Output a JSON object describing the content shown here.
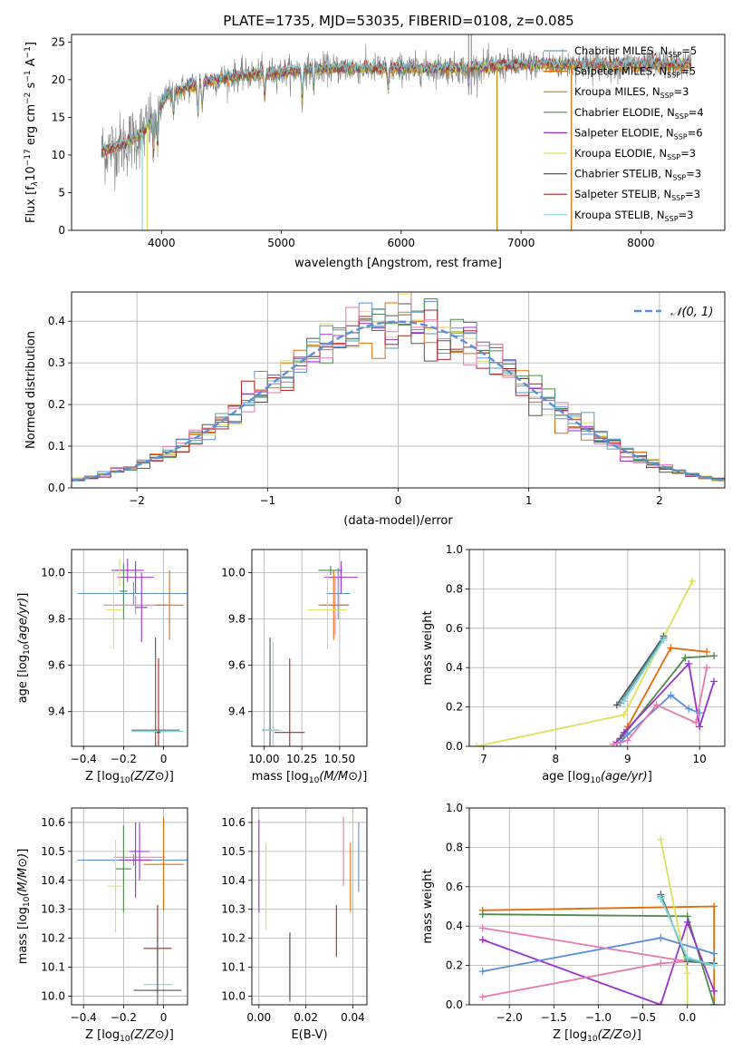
{
  "figure": {
    "title": "PLATE=1735, MJD=53035, FIBERID=0108, z=0.085"
  },
  "models": [
    {
      "label": "Chabrier MILES, N",
      "sub": "SSP",
      "tail": "=5",
      "color": "#5f9ea0"
    },
    {
      "label": "Salpeter MILES, N",
      "sub": "SSP",
      "tail": "=5",
      "color": "#e36c0a"
    },
    {
      "label": "Kroupa MILES, N",
      "sub": "SSP",
      "tail": "=3",
      "color": "#b8860b"
    },
    {
      "label": "Chabrier ELODIE, N",
      "sub": "SSP",
      "tail": "=4",
      "color": "#4e8a4e"
    },
    {
      "label": "Salpeter ELODIE, N",
      "sub": "SSP",
      "tail": "=6",
      "color": "#9932cc"
    },
    {
      "label": "Kroupa ELODIE, N",
      "sub": "SSP",
      "tail": "=3",
      "color": "#dde05b"
    },
    {
      "label": "Chabrier STELIB, N",
      "sub": "SSP",
      "tail": "=3",
      "color": "#555555"
    },
    {
      "label": "Salpeter STELIB, N",
      "sub": "SSP",
      "tail": "=3",
      "color": "#b22222"
    },
    {
      "label": "Kroupa STELIB, N",
      "sub": "SSP",
      "tail": "=3",
      "color": "#7fd8e0"
    }
  ],
  "chart_data": [
    {
      "id": "spectrum",
      "type": "line",
      "xlabel": "wavelength [Angstrom, rest frame]",
      "ylabel_parts": [
        "Flux [f",
        "λ",
        "10",
        "−17",
        " erg cm",
        "−2",
        " s",
        "−1",
        " A",
        "−1",
        "]"
      ],
      "xlim": [
        3250,
        8700
      ],
      "ylim": [
        0,
        26
      ],
      "xticks": [
        4000,
        5000,
        6000,
        7000,
        8000
      ],
      "yticks": [
        0,
        5,
        10,
        15,
        20,
        25
      ],
      "grid": false,
      "legend": "right",
      "continuum_knots": {
        "x": [
          3500,
          3700,
          3850,
          3950,
          4050,
          4300,
          4600,
          5000,
          5300,
          5700,
          6000,
          6500,
          7000,
          7500,
          8000,
          8400
        ],
        "y": [
          10.5,
          11.5,
          13.0,
          15.5,
          18.0,
          19.5,
          20.5,
          21.0,
          21.5,
          21.5,
          21.5,
          21.5,
          22.0,
          22.0,
          22.0,
          22.0
        ]
      },
      "absorption_lines": [
        {
          "x": 3934,
          "depth": 5
        },
        {
          "x": 3968,
          "depth": 5
        },
        {
          "x": 4101,
          "depth": 3
        },
        {
          "x": 4304,
          "depth": 4
        },
        {
          "x": 4340,
          "depth": 3
        },
        {
          "x": 4861,
          "depth": 3
        },
        {
          "x": 5175,
          "depth": 4
        },
        {
          "x": 5270,
          "depth": 2
        },
        {
          "x": 5892,
          "depth": 3
        },
        {
          "x": 6563,
          "depth": 2
        }
      ],
      "emission_spikes": [
        6563,
        6585
      ]
    },
    {
      "id": "residuals",
      "type": "area",
      "xlabel": "(data-model)/error",
      "ylabel": "Normed distribution",
      "xlim": [
        -2.5,
        2.5
      ],
      "ylim": [
        0,
        0.47
      ],
      "xticks": [
        -2,
        -1,
        0,
        1,
        2
      ],
      "yticks": [
        0.0,
        0.1,
        0.2,
        0.3,
        0.4
      ],
      "grid": true,
      "legend": "top-right",
      "gaussian_label": "𝒩(0, 1)",
      "gaussian_color": "#5b8fd8",
      "bin_width": 0.1
    },
    {
      "id": "age-vs-metallicity",
      "type": "scatter",
      "xlabel": "Z [log10(Z/Z⊙)]",
      "ylabel": "age [log10(age/yr)]",
      "xlim": [
        -0.46,
        0.12
      ],
      "ylim": [
        9.25,
        10.1
      ],
      "xticks": [
        -0.4,
        -0.2,
        0.0
      ],
      "yticks": [
        9.4,
        9.6,
        9.8,
        10.0
      ],
      "grid": true,
      "points": [
        {
          "x": -0.18,
          "y": 10.01,
          "xerr": 0.08,
          "yerr": 0.05,
          "c": 4
        },
        {
          "x": -0.14,
          "y": 9.98,
          "xerr": 0.09,
          "yerr": 0.07,
          "c": 4
        },
        {
          "x": -0.22,
          "y": 10.0,
          "xerr": 0.04,
          "yerr": 0.06,
          "c": 5
        },
        {
          "x": -0.2,
          "y": 9.92,
          "xerr": 0.02,
          "yerr": 0.12,
          "c": 3
        },
        {
          "x": -0.15,
          "y": 9.91,
          "xerr": 0.28,
          "yerr": 0.05,
          "c": 10
        },
        {
          "x": -0.14,
          "y": 9.86,
          "xerr": 0.16,
          "yerr": 0.04,
          "c": 11
        },
        {
          "x": 0.03,
          "y": 9.86,
          "xerr": 0.07,
          "yerr": 0.15,
          "c": 1
        },
        {
          "x": -0.25,
          "y": 9.84,
          "xerr": 0.04,
          "yerr": 0.17,
          "c": 5
        },
        {
          "x": -0.11,
          "y": 9.85,
          "xerr": 0.03,
          "yerr": 0.15,
          "c": 4
        },
        {
          "x": -0.04,
          "y": 9.32,
          "xerr": 0.12,
          "yerr": 0.4,
          "c": 6
        },
        {
          "x": -0.03,
          "y": 9.315,
          "xerr": 0.13,
          "yerr": 0.01,
          "c": 8
        },
        {
          "x": -0.025,
          "y": 9.31,
          "xerr": 0.01,
          "yerr": 0.32,
          "c": 7
        }
      ]
    },
    {
      "id": "age-vs-mass",
      "type": "scatter",
      "xlabel": "mass [log10(M/M⊙)]",
      "xlim": [
        9.92,
        10.68
      ],
      "ylim": [
        9.25,
        10.1
      ],
      "xticks": [
        10.0,
        10.25,
        10.5
      ],
      "xticklabels": [
        "10.00",
        "10.25",
        "10.50"
      ],
      "yticks": [
        9.4,
        9.6,
        9.8,
        10.0
      ],
      "grid": true,
      "points": [
        {
          "x": 10.44,
          "y": 10.01,
          "xerr": 0.08,
          "yerr": 0.02,
          "c": 3
        },
        {
          "x": 10.51,
          "y": 9.98,
          "xerr": 0.11,
          "yerr": 0.07,
          "c": 4
        },
        {
          "x": 10.49,
          "y": 9.91,
          "xerr": 0.08,
          "yerr": 0.11,
          "c": 10
        },
        {
          "x": 10.47,
          "y": 9.86,
          "xerr": 0.09,
          "yerr": 0.13,
          "c": 11
        },
        {
          "x": 10.46,
          "y": 9.86,
          "xerr": 0.1,
          "yerr": 0.15,
          "c": 1
        },
        {
          "x": 10.42,
          "y": 9.84,
          "xerr": 0.13,
          "yerr": 0.17,
          "c": 5
        },
        {
          "x": 10.04,
          "y": 9.32,
          "xerr": 0.05,
          "yerr": 0.4,
          "c": 6
        },
        {
          "x": 10.06,
          "y": 9.32,
          "xerr": 0.06,
          "yerr": 0.38,
          "c": 8
        },
        {
          "x": 10.17,
          "y": 9.31,
          "xerr": 0.1,
          "yerr": 0.32,
          "c": 7
        }
      ]
    },
    {
      "id": "weight-vs-age",
      "type": "line",
      "xlabel": "age [log10(age/yr)]",
      "ylabel": "mass weight",
      "xlim": [
        6.8,
        10.35
      ],
      "ylim": [
        0,
        1.0
      ],
      "xticks": [
        7,
        8,
        9,
        10
      ],
      "yticks": [
        0.0,
        0.2,
        0.4,
        0.6,
        0.8,
        1.0
      ],
      "grid": true,
      "series": [
        {
          "c": 5,
          "x": [
            6.9,
            8.95,
            9.9
          ],
          "y": [
            0.0,
            0.16,
            0.84
          ]
        },
        {
          "c": 1,
          "x": [
            8.9,
            9.0,
            9.6,
            10.1
          ],
          "y": [
            0.04,
            0.1,
            0.5,
            0.48
          ]
        },
        {
          "c": 3,
          "x": [
            8.9,
            8.95,
            9.8,
            10.2
          ],
          "y": [
            0.04,
            0.06,
            0.45,
            0.46
          ]
        },
        {
          "c": 4,
          "x": [
            8.85,
            8.95,
            9.85,
            10.0,
            10.2
          ],
          "y": [
            0.02,
            0.07,
            0.42,
            0.1,
            0.33
          ]
        },
        {
          "c": 10,
          "x": [
            8.9,
            9.0,
            9.6,
            9.85,
            10.0
          ],
          "y": [
            0.02,
            0.06,
            0.26,
            0.19,
            0.17
          ]
        },
        {
          "c": 11,
          "x": [
            8.8,
            9.0,
            9.4,
            9.95,
            10.1
          ],
          "y": [
            0.01,
            0.03,
            0.21,
            0.12,
            0.4
          ]
        },
        {
          "c": 6,
          "x": [
            8.85,
            9.5
          ],
          "y": [
            0.21,
            0.56
          ]
        },
        {
          "c": 0,
          "x": [
            8.9,
            9.5
          ],
          "y": [
            0.22,
            0.55
          ]
        },
        {
          "c": 8,
          "x": [
            8.95,
            9.5
          ],
          "y": [
            0.23,
            0.54
          ]
        }
      ]
    },
    {
      "id": "mass-vs-metallicity",
      "type": "scatter",
      "xlabel": "Z [log10(Z/Z⊙)]",
      "ylabel": "mass [log10(M/M⊙)]",
      "xlim": [
        -0.46,
        0.12
      ],
      "ylim": [
        9.97,
        10.65
      ],
      "xticks": [
        -0.4,
        -0.2,
        0.0
      ],
      "yticks": [
        10.0,
        10.1,
        10.2,
        10.3,
        10.4,
        10.5,
        10.6
      ],
      "grid": true,
      "points": [
        {
          "x": -0.15,
          "y": 10.47,
          "xerr": 0.28,
          "yerr": 0.02,
          "c": 10
        },
        {
          "x": -0.12,
          "y": 10.48,
          "xerr": 0.13,
          "yerr": 0.07,
          "c": 11
        },
        {
          "x": -0.14,
          "y": 10.47,
          "xerr": 0.08,
          "yerr": 0.13,
          "c": 4
        },
        {
          "x": -0.12,
          "y": 10.5,
          "xerr": 0.05,
          "yerr": 0.1,
          "c": 4
        },
        {
          "x": 0.0,
          "y": 10.455,
          "xerr": 0.1,
          "yerr": 0.16,
          "c": 1
        },
        {
          "x": -0.2,
          "y": 10.44,
          "xerr": 0.04,
          "yerr": 0.15,
          "c": 3
        },
        {
          "x": -0.24,
          "y": 10.38,
          "xerr": 0.04,
          "yerr": 0.16,
          "c": 5
        },
        {
          "x": -0.03,
          "y": 10.165,
          "xerr": 0.07,
          "yerr": 0.15,
          "c": 7
        },
        {
          "x": -0.03,
          "y": 10.04,
          "xerr": 0.07,
          "yerr": 0.04,
          "c": 8
        },
        {
          "x": -0.03,
          "y": 10.02,
          "xerr": 0.12,
          "yerr": 0.19,
          "c": 6
        }
      ]
    },
    {
      "id": "mass-vs-ebv",
      "type": "scatter",
      "xlabel": "E(B-V)",
      "xlim": [
        -0.003,
        0.046
      ],
      "ylim": [
        9.97,
        10.65
      ],
      "xticks": [
        0.0,
        0.02,
        0.04
      ],
      "xticklabels": [
        "0.00",
        "0.02",
        "0.04"
      ],
      "yticks": [
        10.0,
        10.1,
        10.2,
        10.3,
        10.4,
        10.5,
        10.6
      ],
      "grid": true,
      "points": [
        {
          "x": 0.0,
          "y": 10.45,
          "xerr": 0,
          "yerr": 0.16,
          "c": 4
        },
        {
          "x": 0.003,
          "y": 10.38,
          "xerr": 0,
          "yerr": 0.15,
          "c": 5
        },
        {
          "x": 0.013,
          "y": 10.1,
          "xerr": 0,
          "yerr": 0.11,
          "c": 8
        },
        {
          "x": 0.0132,
          "y": 10.1,
          "xerr": 0,
          "yerr": 0.12,
          "c": 6
        },
        {
          "x": 0.033,
          "y": 10.225,
          "xerr": 0,
          "yerr": 0.09,
          "c": 7
        },
        {
          "x": 0.036,
          "y": 10.5,
          "xerr": 0,
          "yerr": 0.12,
          "c": 11
        },
        {
          "x": 0.039,
          "y": 10.41,
          "xerr": 0,
          "yerr": 0.12,
          "c": 1
        },
        {
          "x": 0.0425,
          "y": 10.48,
          "xerr": 0,
          "yerr": 0.12,
          "c": 10
        }
      ]
    },
    {
      "id": "weight-vs-metallicity",
      "type": "line",
      "xlabel": "Z [log10(Z/Z⊙)]",
      "ylabel": "mass weight",
      "xlim": [
        -2.45,
        0.42
      ],
      "ylim": [
        0,
        1.0
      ],
      "xticks": [
        -2.0,
        -1.5,
        -1.0,
        -0.5,
        0.0
      ],
      "xticklabels": [
        "−2.0",
        "−1.5",
        "−1.0",
        "−0.5",
        "0.0"
      ],
      "yticks": [
        0.0,
        0.2,
        0.4,
        0.6,
        0.8,
        1.0
      ],
      "grid": true,
      "series": [
        {
          "c": 1,
          "x": [
            -2.3,
            0.3,
            0.3
          ],
          "y": [
            0.48,
            0.5,
            0.0
          ]
        },
        {
          "c": 3,
          "x": [
            -2.3,
            0.0,
            0.3
          ],
          "y": [
            0.46,
            0.45,
            0.0
          ]
        },
        {
          "c": 4,
          "x": [
            -2.3,
            -0.3,
            0.0,
            0.3
          ],
          "y": [
            0.33,
            0.0,
            0.42,
            0.07
          ]
        },
        {
          "c": 10,
          "x": [
            -2.3,
            -0.3,
            0.3
          ],
          "y": [
            0.17,
            0.34,
            0.26
          ]
        },
        {
          "c": 11,
          "x": [
            -2.3,
            -0.3,
            0.0,
            -2.3
          ],
          "y": [
            0.04,
            0.21,
            0.22,
            0.39
          ]
        },
        {
          "c": 5,
          "x": [
            -0.3,
            0.0,
            0.0
          ],
          "y": [
            0.84,
            0.16,
            0.0
          ]
        },
        {
          "c": 6,
          "x": [
            -0.3,
            0.0,
            0.3
          ],
          "y": [
            0.56,
            0.22,
            0.21
          ]
        },
        {
          "c": 0,
          "x": [
            -0.3,
            0.0,
            0.3
          ],
          "y": [
            0.55,
            0.23,
            0.2
          ]
        },
        {
          "c": 8,
          "x": [
            -0.3,
            0.0,
            0.3
          ],
          "y": [
            0.54,
            0.24,
            0.2
          ]
        }
      ]
    }
  ],
  "palette": [
    "#5f9ea0",
    "#e36c0a",
    "#b8860b",
    "#4e8a4e",
    "#9932cc",
    "#dde05b",
    "#555555",
    "#b22222",
    "#7fd8e0",
    "#999999",
    "#5b8fd8",
    "#e67ab0"
  ]
}
